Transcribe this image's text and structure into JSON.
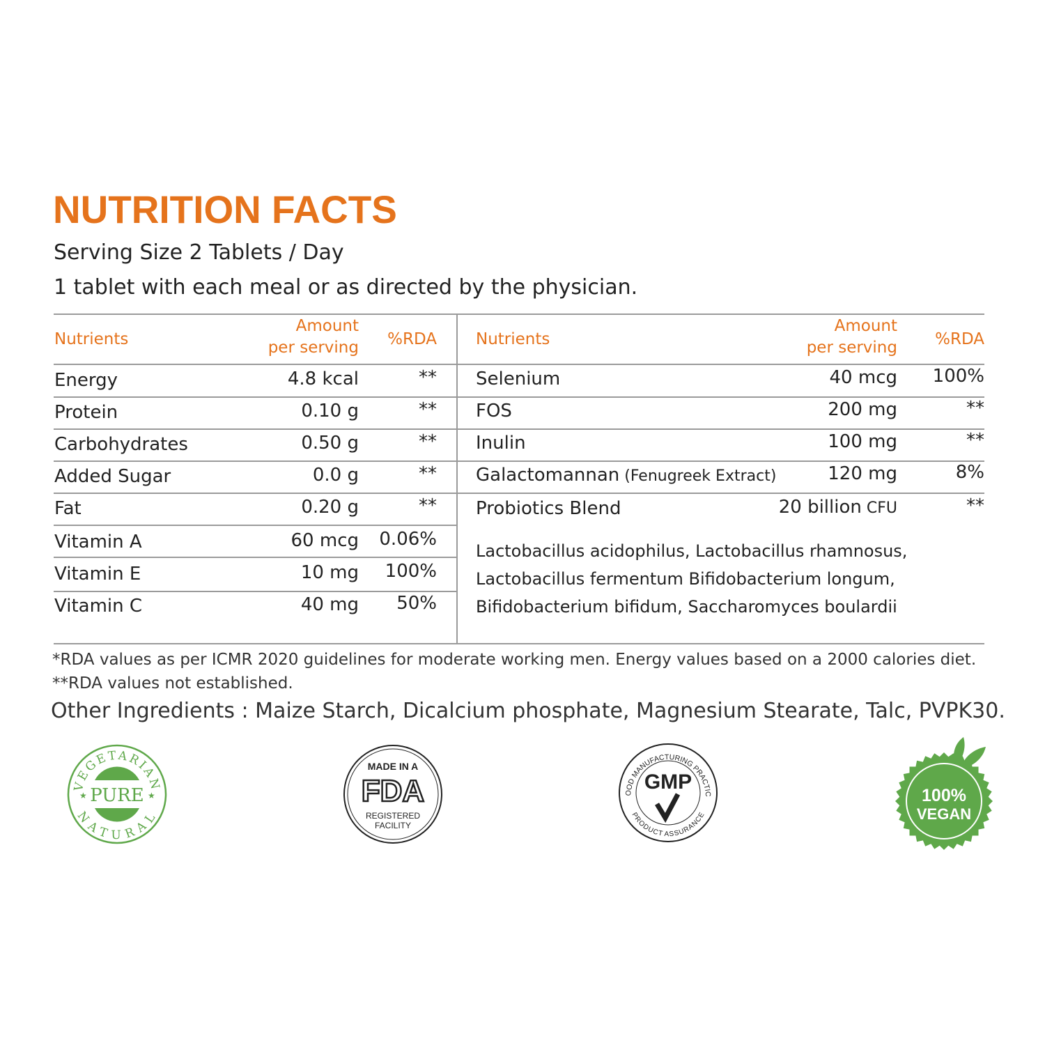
{
  "title": "NUTRITION FACTS",
  "serving_size": "Serving Size 2 Tablets / Day",
  "directions": "1 tablet with each meal or as directed by the physician.",
  "headers": {
    "nutrients": "Nutrients",
    "amount_line1": "Amount",
    "amount_line2": "per serving",
    "rda": "%RDA"
  },
  "left_rows": [
    {
      "name": "Energy",
      "amount": "4.8 kcal",
      "rda": "**"
    },
    {
      "name": "Protein",
      "amount": "0.10 g",
      "rda": "**"
    },
    {
      "name": "Carbohydrates",
      "amount": "0.50 g",
      "rda": "**"
    },
    {
      "name": "Added Sugar",
      "amount": "0.0 g",
      "rda": "**"
    },
    {
      "name": "Fat",
      "amount": "0.20 g",
      "rda": "**"
    },
    {
      "name": "Vitamin A",
      "amount": "60 mcg",
      "rda": "0.06%"
    },
    {
      "name": "Vitamin E",
      "amount": "10 mg",
      "rda": "100%"
    },
    {
      "name": "Vitamin C",
      "amount": "40 mg",
      "rda": "50%"
    }
  ],
  "right_rows": [
    {
      "name": "Selenium",
      "note": "",
      "amount": "40 mcg",
      "unit": "",
      "rda": "100%"
    },
    {
      "name": "FOS",
      "note": "",
      "amount": "200 mg",
      "unit": "",
      "rda": "**"
    },
    {
      "name": "Inulin",
      "note": "",
      "amount": "100 mg",
      "unit": "",
      "rda": "**"
    },
    {
      "name": "Galactomannan",
      "note": " (Fenugreek Extract)",
      "amount": "120 mg",
      "unit": "",
      "rda": "8%"
    },
    {
      "name": "Probiotics Blend",
      "note": "",
      "amount": "20 billion",
      "unit": " CFU",
      "rda": "**"
    }
  ],
  "probiotic_strains": [
    "Lactobacillus acidophilus, Lactobacillus rhamnosus,",
    "Lactobacillus fermentum Bifidobacterium longum,",
    "Bifidobacterium bifidum, Saccharomyces boulardii"
  ],
  "footnotes": [
    "*RDA values as per ICMR 2020 guidelines for moderate working men. Energy values based on a 2000 calories diet.",
    "**RDA values not established."
  ],
  "other_ingredients": "Other Ingredients : Maize Starch, Dicalcium phosphate, Magnesium Stearate, Talc, PVPK30.",
  "badges": {
    "vegetarian": {
      "top": "VEGETARIAN",
      "center": "PURE",
      "bottom": "NATURAL",
      "color": "#5fa84a"
    },
    "fda": {
      "top": "MADE IN A",
      "center": "FDA",
      "bottom1": "REGISTERED",
      "bottom2": "FACILITY"
    },
    "gmp": {
      "top": "GOOD MANUFACTURING PRACTICE",
      "center": "GMP",
      "bottom": "PRODUCT ASSURANCE"
    },
    "vegan": {
      "line1": "100%",
      "line2": "VEGAN",
      "color": "#5fa84a"
    }
  },
  "colors": {
    "accent": "#e5731c",
    "rule": "#9a9a9a",
    "badge_green": "#5fa84a"
  }
}
